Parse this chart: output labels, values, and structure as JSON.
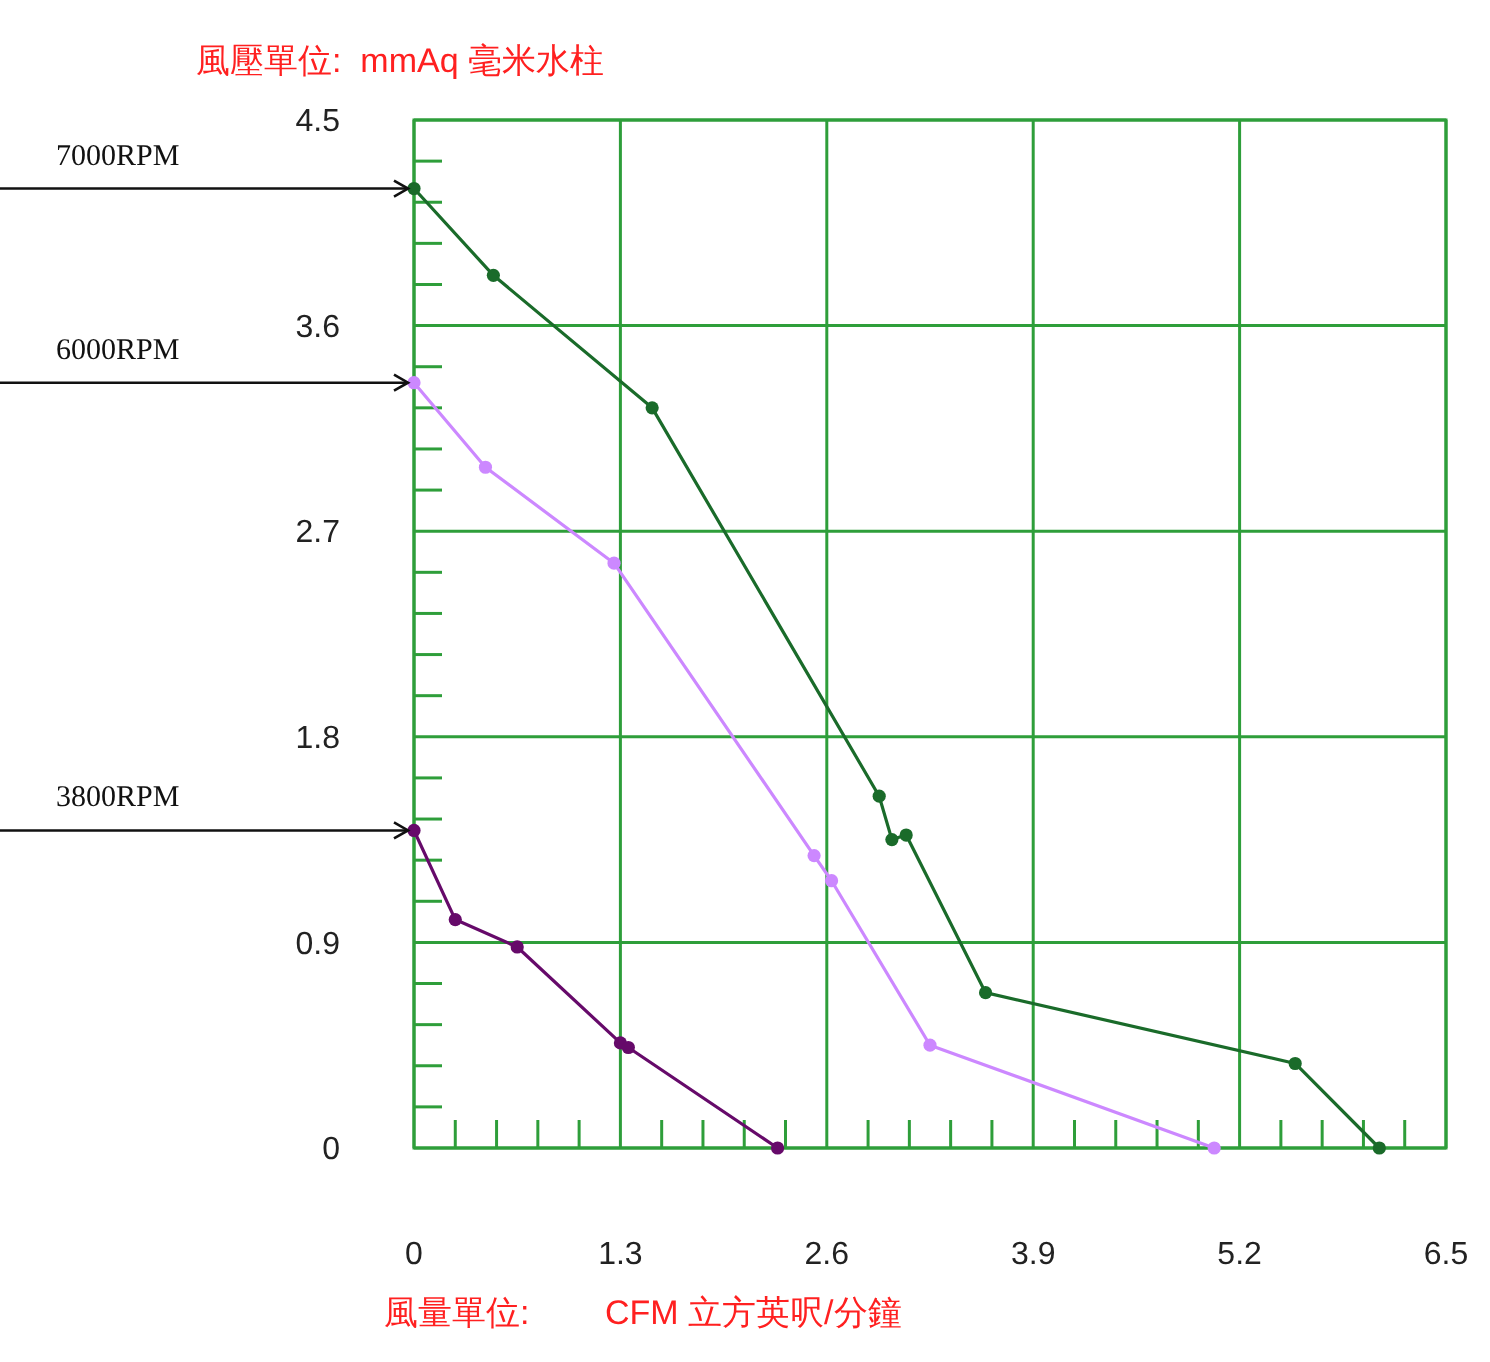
{
  "chart_data": {
    "type": "line",
    "xlabel": "風量單位:        CFM 立方英呎/分鐘",
    "ylabel": "風壓單位:  mmAq 毫米水柱",
    "xlim": [
      0,
      6.5
    ],
    "ylim": [
      0,
      4.5
    ],
    "xticks": [
      0,
      {
        "value": 0.26,
        "label": null
      },
      {
        "value": 0.52,
        "label": null
      },
      {
        "value": 0.78,
        "label": null
      },
      {
        "value": 1.04,
        "label": null
      },
      1.3,
      {
        "value": 1.56,
        "label": null
      },
      {
        "value": 1.82,
        "label": null
      },
      {
        "value": 2.08,
        "label": null
      },
      {
        "value": 2.34,
        "label": null
      },
      2.6,
      {
        "value": 2.86,
        "label": null
      },
      {
        "value": 3.12,
        "label": null
      },
      {
        "value": 3.38,
        "label": null
      },
      {
        "value": 3.64,
        "label": null
      },
      3.9,
      {
        "value": 4.16,
        "label": null
      },
      {
        "value": 4.42,
        "label": null
      },
      {
        "value": 4.68,
        "label": null
      },
      {
        "value": 4.94,
        "label": null
      },
      5.2,
      {
        "value": 5.46,
        "label": null
      },
      {
        "value": 5.72,
        "label": null
      },
      {
        "value": 5.98,
        "label": null
      },
      {
        "value": 6.24,
        "label": null
      },
      6.5
    ],
    "yticks": [
      0,
      {
        "value": 0.18,
        "label": null
      },
      {
        "value": 0.36,
        "label": null
      },
      {
        "value": 0.54,
        "label": null
      },
      {
        "value": 0.72,
        "label": null
      },
      0.9,
      {
        "value": 1.08,
        "label": null
      },
      {
        "value": 1.26,
        "label": null
      },
      {
        "value": 1.44,
        "label": null
      },
      {
        "value": 1.62,
        "label": null
      },
      1.8,
      {
        "value": 1.98,
        "label": null
      },
      {
        "value": 2.16,
        "label": null
      },
      {
        "value": 2.34,
        "label": null
      },
      {
        "value": 2.52,
        "label": null
      },
      2.7,
      {
        "value": 2.88,
        "label": null
      },
      {
        "value": 3.06,
        "label": null
      },
      {
        "value": 3.24,
        "label": null
      },
      {
        "value": 3.42,
        "label": null
      },
      3.6,
      {
        "value": 3.78,
        "label": null
      },
      {
        "value": 3.96,
        "label": null
      },
      {
        "value": 4.14,
        "label": null
      },
      {
        "value": 4.32,
        "label": null
      },
      4.5
    ],
    "annotations": [
      "7000RPM",
      "6000RPM",
      "3800RPM"
    ],
    "grid": true,
    "marker": "circle",
    "line_style": "solid",
    "series": [
      {
        "color": "#1a6b2a",
        "x": [
          0,
          0.5,
          1.5,
          2.93,
          3.01,
          3.1,
          3.6,
          5.55,
          6.08
        ],
        "values": [
          4.2,
          3.82,
          3.24,
          1.54,
          1.35,
          1.37,
          0.68,
          0.37,
          0
        ]
      },
      {
        "color": "#cc88ff",
        "x": [
          0,
          0.45,
          1.26,
          2.52,
          2.63,
          3.25,
          5.04
        ],
        "values": [
          3.35,
          2.98,
          2.56,
          1.28,
          1.17,
          0.45,
          0
        ]
      },
      {
        "color": "#660a6a",
        "x": [
          0,
          0.26,
          0.65,
          1.3,
          1.35,
          2.29
        ],
        "values": [
          1.39,
          1.0,
          0.88,
          0.46,
          0.44,
          0
        ]
      }
    ]
  }
}
